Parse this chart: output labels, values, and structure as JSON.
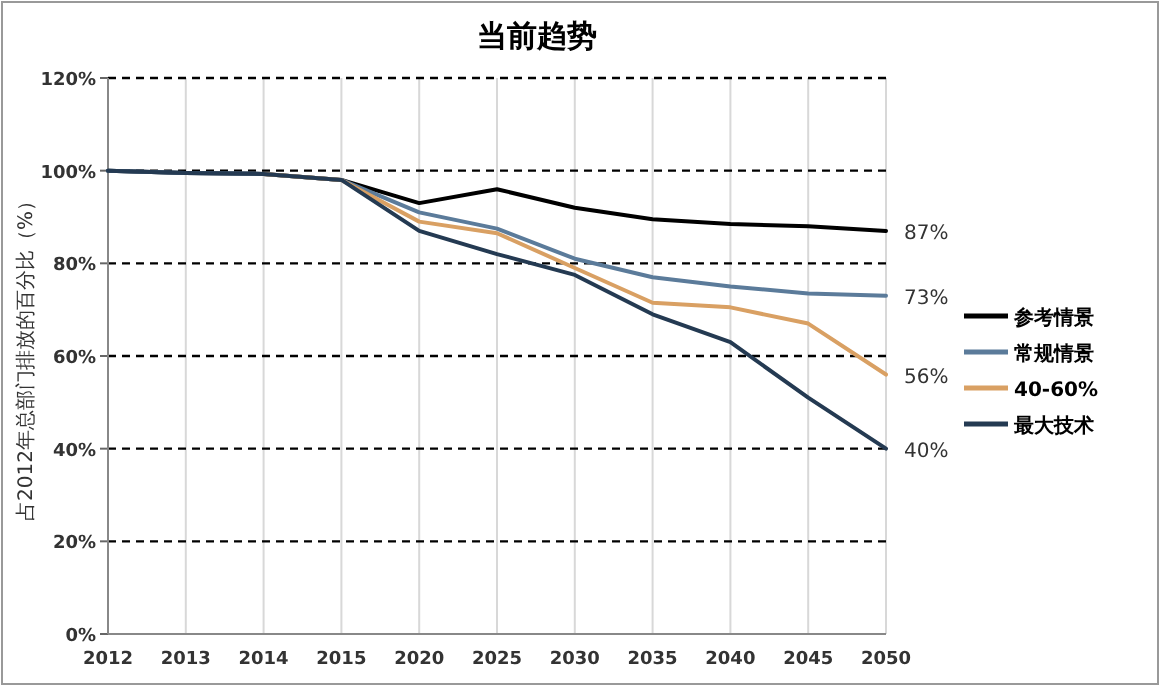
{
  "chart_data": {
    "type": "line",
    "title": "当前趋势",
    "ylabel": "占2012年总部门排放的百分比（%）",
    "categories": [
      "2012",
      "2013",
      "2014",
      "2015",
      "2020",
      "2025",
      "2030",
      "2035",
      "2040",
      "2045",
      "2050"
    ],
    "series": [
      {
        "name": "参考情景",
        "color": "#000000",
        "values": [
          100,
          99.5,
          99.3,
          98,
          93,
          96,
          92,
          89.5,
          88.5,
          88,
          87
        ],
        "value_labels": [
          null,
          null,
          null,
          null,
          null,
          null,
          null,
          null,
          null,
          null,
          "87%"
        ]
      },
      {
        "name": "常规情景",
        "color": "#5b7b9a",
        "values": [
          100,
          99.5,
          99.3,
          98,
          91,
          87.5,
          81,
          77,
          75,
          73.5,
          73
        ],
        "value_labels": [
          null,
          null,
          null,
          null,
          null,
          null,
          null,
          null,
          null,
          null,
          "73%"
        ]
      },
      {
        "name": "40-60%",
        "color": "#d9a063",
        "values": [
          null,
          null,
          99.3,
          98,
          89,
          86.5,
          79,
          71.5,
          70.5,
          67,
          56
        ],
        "value_labels": [
          null,
          null,
          null,
          null,
          null,
          null,
          null,
          null,
          null,
          null,
          "56%"
        ]
      },
      {
        "name": "最大技术",
        "color": "#243a52",
        "values": [
          100,
          99.5,
          99.3,
          98,
          87,
          82,
          77.5,
          69,
          63,
          51,
          40
        ],
        "value_labels": [
          null,
          null,
          null,
          null,
          null,
          null,
          null,
          null,
          null,
          null,
          "40%"
        ]
      }
    ],
    "ylim": [
      0,
      120
    ],
    "yticks": [
      {
        "value": 0,
        "label": "0%"
      },
      {
        "value": 20,
        "label": "20%"
      },
      {
        "value": 40,
        "label": "40%"
      },
      {
        "value": 60,
        "label": "60%"
      },
      {
        "value": 80,
        "label": "80%"
      },
      {
        "value": 100,
        "label": "100%"
      },
      {
        "value": 120,
        "label": "120%"
      }
    ],
    "grid": true,
    "legend": "right",
    "marker": "none",
    "line_style": "solid"
  }
}
